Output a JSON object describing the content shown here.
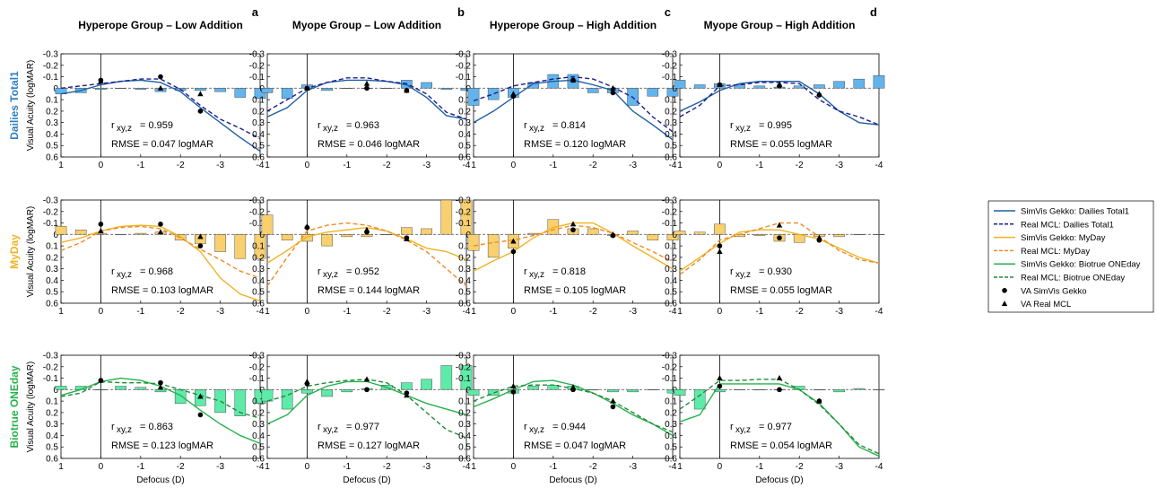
{
  "figure": {
    "x_label": "Defocus (D)",
    "y_label": "Visual Acuity (logMAR)",
    "columns": [
      {
        "title": "Hyperope Group – Low Addition",
        "letter": "a"
      },
      {
        "title": "Myope Group – Low Addition",
        "letter": "b"
      },
      {
        "title": "Hyperope Group – High Addition",
        "letter": "c"
      },
      {
        "title": "Myope Group – High Addition",
        "letter": "d"
      }
    ],
    "rows": [
      {
        "label": "Dailies Total1",
        "color": "#2e7fc2",
        "bar_color": "#64b4ec"
      },
      {
        "label": "MyDay",
        "color": "#f0b323",
        "bar_color": "#f8d070"
      },
      {
        "label": "Biotrue ONEday",
        "color": "#26b24b",
        "bar_color": "#5eeaa8"
      }
    ],
    "sim_dark_color": "#1f5fa3",
    "real_dark_colors": [
      "#1b1e8c",
      "#f08a24",
      "#1e8a3a"
    ]
  },
  "legend": {
    "items": [
      {
        "label": "SimVis Gekko: Dailies Total1",
        "style": "solid",
        "color": "#1f5fa3"
      },
      {
        "label": "Real MCL: Dailies Total1",
        "style": "dashed",
        "color": "#1b1e8c"
      },
      {
        "label": "SimVis Gekko: MyDay",
        "style": "solid",
        "color": "#f0b323"
      },
      {
        "label": "Real MCL: MyDay",
        "style": "dashed",
        "color": "#f08a24"
      },
      {
        "label": "SimVis Gekko: Biotrue ONEday",
        "style": "solid",
        "color": "#26b24b"
      },
      {
        "label": "Real MCL: Biotrue ONEday",
        "style": "dashed",
        "color": "#1e8a3a"
      },
      {
        "label": "VA SimVis Gekko",
        "style": "circle",
        "color": "#000000"
      },
      {
        "label": "VA Real MCL",
        "style": "triangle",
        "color": "#000000"
      }
    ]
  },
  "chart_data": {
    "type": "line",
    "x_ticks": [
      1,
      0,
      -1,
      -2,
      -3,
      -4
    ],
    "y_ticks": [
      -0.3,
      -0.2,
      -0.1,
      0,
      0.1,
      0.2,
      0.3,
      0.4,
      0.5,
      0.6
    ],
    "xlim": [
      1,
      -4
    ],
    "ylim": [
      -0.3,
      0.6
    ],
    "y_inverted": true,
    "x": [
      1,
      0.5,
      0,
      -0.5,
      -1,
      -1.5,
      -2,
      -2.5,
      -3,
      -3.5,
      -4
    ],
    "panels": [
      {
        "row": 0,
        "col": 0,
        "r_label": "r",
        "r_sub": "xy,z",
        "r_value": "= 0.959",
        "rmse": "RMSE = 0.047 logMAR",
        "sim": [
          0.05,
          0.02,
          -0.03,
          -0.06,
          -0.07,
          -0.05,
          0.03,
          0.17,
          0.3,
          0.43,
          0.55
        ],
        "real": [
          0.0,
          -0.02,
          -0.04,
          -0.06,
          -0.08,
          -0.08,
          0.01,
          0.15,
          0.27,
          0.35,
          0.44
        ],
        "bars": [
          0.05,
          0.04,
          0.01,
          0.0,
          0.01,
          0.03,
          0.02,
          0.02,
          0.03,
          0.08,
          0.09
        ],
        "va_sim": [
          [
            0.0,
            -0.07
          ],
          [
            -1.5,
            -0.1
          ],
          [
            -2.5,
            0.2
          ]
        ],
        "va_real": [
          [
            0.0,
            -0.06
          ],
          [
            -1.5,
            0.0
          ],
          [
            -2.5,
            0.05
          ]
        ]
      },
      {
        "row": 0,
        "col": 1,
        "r_label": "r",
        "r_sub": "xy,z",
        "r_value": "= 0.963",
        "rmse": "RMSE = 0.046 logMAR",
        "sim": [
          0.25,
          0.17,
          0.02,
          -0.05,
          -0.07,
          -0.07,
          -0.06,
          -0.03,
          0.08,
          0.24,
          0.27
        ],
        "real": [
          0.2,
          0.1,
          0.0,
          -0.05,
          -0.09,
          -0.09,
          -0.06,
          -0.04,
          0.05,
          0.21,
          0.27
        ],
        "bars": [
          0.04,
          0.09,
          -0.03,
          0.02,
          0.0,
          0.0,
          0.0,
          -0.07,
          -0.05,
          0.01,
          0.02
        ],
        "va_sim": [
          [
            0.0,
            0.0
          ],
          [
            -1.5,
            0.0
          ],
          [
            -2.5,
            0.02
          ]
        ],
        "va_real": [
          [
            0.0,
            0.0
          ],
          [
            -1.5,
            -0.04
          ],
          [
            -2.5,
            0.02
          ]
        ]
      },
      {
        "row": 0,
        "col": 2,
        "r_label": "r",
        "r_sub": "xy,z",
        "r_value": "= 0.814",
        "rmse": "RMSE = 0.120 logMAR",
        "sim": [
          0.3,
          0.2,
          0.08,
          -0.04,
          -0.06,
          -0.07,
          -0.03,
          0.02,
          0.2,
          0.32,
          0.45
        ],
        "real": [
          0.11,
          0.05,
          -0.02,
          -0.05,
          -0.08,
          -0.1,
          -0.08,
          -0.01,
          0.08,
          0.25,
          0.38
        ],
        "bars": [
          0.15,
          0.1,
          0.08,
          -0.05,
          -0.12,
          -0.12,
          0.04,
          0.04,
          0.15,
          0.07,
          0.07
        ],
        "va_sim": [
          [
            0.0,
            0.07
          ],
          [
            -1.5,
            -0.07
          ],
          [
            -2.5,
            0.04
          ]
        ],
        "va_real": [
          [
            0.0,
            0.05
          ],
          [
            -1.5,
            -0.07
          ],
          [
            -2.5,
            0.0
          ]
        ]
      },
      {
        "row": 0,
        "col": 3,
        "r_label": "r",
        "r_sub": "xy,z",
        "r_value": "= 0.995",
        "rmse": "RMSE = 0.055 logMAR",
        "sim": [
          0.2,
          0.12,
          0.02,
          -0.04,
          -0.06,
          -0.06,
          -0.06,
          0.05,
          0.2,
          0.3,
          0.32
        ],
        "real": [
          0.25,
          0.15,
          -0.02,
          -0.03,
          -0.05,
          -0.05,
          -0.04,
          0.1,
          0.2,
          0.25,
          0.32
        ],
        "bars": [
          -0.07,
          -0.03,
          -0.04,
          -0.03,
          -0.02,
          -0.01,
          -0.02,
          -0.03,
          -0.06,
          -0.08,
          -0.11
        ],
        "va_sim": [
          [
            0.0,
            -0.03
          ],
          [
            -1.5,
            -0.02
          ],
          [
            -2.5,
            0.06
          ]
        ],
        "va_real": [
          [
            0.0,
            -0.03
          ],
          [
            -1.5,
            -0.03
          ],
          [
            -2.5,
            0.05
          ]
        ]
      },
      {
        "row": 1,
        "col": 0,
        "r_label": "r",
        "r_sub": "xy,z",
        "r_value": "= 0.968",
        "rmse": "RMSE = 0.103 logMAR",
        "sim": [
          0.07,
          0.03,
          -0.03,
          -0.07,
          -0.08,
          -0.07,
          0.02,
          0.15,
          0.38,
          0.52,
          0.58
        ],
        "real": [
          0.14,
          0.07,
          -0.03,
          -0.06,
          -0.07,
          -0.05,
          0.03,
          0.13,
          0.22,
          0.32,
          0.38
        ],
        "bars": [
          -0.07,
          -0.04,
          -0.01,
          0.0,
          -0.01,
          -0.02,
          0.05,
          0.08,
          0.15,
          0.21,
          0.21
        ],
        "va_sim": [
          [
            0.0,
            -0.09
          ],
          [
            -1.5,
            -0.09
          ],
          [
            -2.5,
            0.1
          ]
        ],
        "va_real": [
          [
            0.0,
            -0.03
          ],
          [
            -1.5,
            -0.02
          ],
          [
            -2.5,
            0.02
          ]
        ]
      },
      {
        "row": 1,
        "col": 1,
        "r_label": "r",
        "r_sub": "xy,z",
        "r_value": "= 0.952",
        "rmse": "RMSE = 0.144 logMAR",
        "sim": [
          0.25,
          0.14,
          0.02,
          -0.02,
          -0.04,
          -0.06,
          -0.03,
          0.04,
          0.12,
          0.15,
          0.22
        ],
        "real": [
          0.45,
          0.2,
          -0.03,
          -0.08,
          -0.1,
          -0.08,
          -0.03,
          0.05,
          0.15,
          0.3,
          0.45
        ],
        "bars": [
          -0.17,
          0.05,
          0.06,
          0.1,
          0.02,
          0.02,
          0.0,
          -0.06,
          -0.05,
          -0.3,
          -0.3
        ],
        "va_sim": [
          [
            0.0,
            -0.06
          ],
          [
            -1.5,
            -0.02
          ],
          [
            -2.5,
            0.03
          ]
        ],
        "va_real": [
          [
            0.0,
            -0.07
          ],
          [
            -1.5,
            -0.04
          ],
          [
            -2.5,
            0.04
          ]
        ]
      },
      {
        "row": 1,
        "col": 2,
        "r_label": "r",
        "r_sub": "xy,z",
        "r_value": "= 0.818",
        "rmse": "RMSE = 0.105 logMAR",
        "sim": [
          0.32,
          0.23,
          0.15,
          0.03,
          -0.06,
          -0.1,
          -0.1,
          -0.01,
          0.1,
          0.2,
          0.3
        ],
        "real": [
          0.1,
          0.07,
          0.05,
          0.01,
          -0.04,
          -0.08,
          -0.06,
          -0.01,
          0.07,
          0.15,
          0.24
        ],
        "bars": [
          0.14,
          0.2,
          0.12,
          -0.01,
          -0.13,
          -0.05,
          -0.05,
          0.01,
          -0.03,
          0.05,
          0.05
        ],
        "va_sim": [
          [
            0.0,
            0.15
          ],
          [
            -1.5,
            -0.04
          ],
          [
            -2.5,
            0.01
          ]
        ],
        "va_real": [
          [
            0.0,
            0.06
          ],
          [
            -1.5,
            -0.09
          ],
          [
            -2.5,
            0.0
          ]
        ]
      },
      {
        "row": 1,
        "col": 3,
        "r_label": "r",
        "r_sub": "xy,z",
        "r_value": "= 0.930",
        "rmse": "RMSE = 0.055 logMAR",
        "sim": [
          0.32,
          0.2,
          0.08,
          -0.02,
          -0.04,
          -0.04,
          0.0,
          0.04,
          0.12,
          0.2,
          0.25
        ],
        "real": [
          0.35,
          0.22,
          0.05,
          0.0,
          -0.05,
          -0.1,
          -0.1,
          0.02,
          0.14,
          0.22,
          0.25
        ],
        "bars": [
          -0.03,
          -0.02,
          -0.09,
          0.02,
          0.01,
          0.06,
          0.07,
          0.02,
          0.02,
          0.0,
          0.0
        ],
        "va_sim": [
          [
            0.0,
            0.1
          ],
          [
            -1.5,
            0.03
          ],
          [
            -2.5,
            0.05
          ]
        ],
        "va_real": [
          [
            0.0,
            0.15
          ],
          [
            -1.5,
            -0.08
          ],
          [
            -2.5,
            0.03
          ]
        ]
      },
      {
        "row": 2,
        "col": 0,
        "r_label": "r",
        "r_sub": "xy,z",
        "r_value": "= 0.863",
        "rmse": "RMSE = 0.123 logMAR",
        "sim": [
          0.05,
          0.0,
          -0.07,
          -0.1,
          -0.08,
          -0.03,
          0.05,
          0.18,
          0.3,
          0.4,
          0.47
        ],
        "real": [
          0.06,
          0.03,
          -0.07,
          -0.06,
          -0.06,
          -0.05,
          0.0,
          0.05,
          0.1,
          0.2,
          0.25
        ],
        "bars": [
          -0.03,
          -0.03,
          0.0,
          -0.03,
          -0.02,
          0.02,
          0.12,
          0.14,
          0.2,
          0.23,
          0.12
        ],
        "va_sim": [
          [
            0.0,
            -0.08
          ],
          [
            -1.5,
            -0.06
          ],
          [
            -2.5,
            0.22
          ]
        ],
        "va_real": [
          [
            0.0,
            -0.08
          ],
          [
            -1.5,
            -0.02
          ],
          [
            -2.5,
            0.06
          ]
        ]
      },
      {
        "row": 2,
        "col": 1,
        "r_label": "r",
        "r_sub": "xy,z",
        "r_value": "= 0.977",
        "rmse": "RMSE = 0.127 logMAR",
        "sim": [
          0.3,
          0.22,
          0.05,
          -0.03,
          -0.07,
          -0.07,
          -0.02,
          0.05,
          0.12,
          0.17,
          0.22
        ],
        "real": [
          0.1,
          0.05,
          -0.03,
          -0.06,
          -0.08,
          -0.09,
          -0.06,
          0.05,
          0.2,
          0.35,
          0.42
        ],
        "bars": [
          0.1,
          0.17,
          0.03,
          0.06,
          0.02,
          -0.01,
          -0.04,
          -0.06,
          -0.09,
          -0.21,
          -0.21
        ],
        "va_sim": [
          [
            0.0,
            -0.05
          ],
          [
            -1.5,
            0.0
          ],
          [
            -2.5,
            0.03
          ]
        ],
        "va_real": [
          [
            0.0,
            -0.07
          ],
          [
            -1.5,
            -0.09
          ],
          [
            -2.5,
            0.05
          ]
        ]
      },
      {
        "row": 2,
        "col": 2,
        "r_label": "r",
        "r_sub": "xy,z",
        "r_value": "= 0.944",
        "rmse": "RMSE = 0.047 logMAR",
        "sim": [
          0.15,
          0.08,
          0.0,
          -0.07,
          -0.08,
          -0.04,
          0.03,
          0.12,
          0.22,
          0.3,
          0.4
        ],
        "real": [
          0.1,
          0.03,
          -0.03,
          -0.04,
          -0.04,
          -0.01,
          0.03,
          0.1,
          0.2,
          0.3,
          0.37
        ],
        "bars": [
          0.05,
          0.05,
          0.03,
          -0.03,
          -0.04,
          -0.03,
          0.0,
          0.02,
          0.02,
          0.0,
          0.03
        ],
        "va_sim": [
          [
            0.0,
            0.02
          ],
          [
            -1.5,
            0.0
          ],
          [
            -2.5,
            0.15
          ]
        ],
        "va_real": [
          [
            0.0,
            -0.03
          ],
          [
            -1.5,
            -0.02
          ],
          [
            -2.5,
            0.1
          ]
        ]
      },
      {
        "row": 2,
        "col": 3,
        "r_label": "r",
        "r_sub": "xy,z",
        "r_value": "= 0.977",
        "rmse": "RMSE = 0.054 logMAR",
        "sim": [
          0.28,
          0.22,
          -0.05,
          -0.05,
          -0.05,
          -0.05,
          0.0,
          0.12,
          0.3,
          0.5,
          0.58
        ],
        "real": [
          0.17,
          0.05,
          -0.08,
          -0.08,
          -0.09,
          -0.09,
          0.0,
          0.13,
          0.3,
          0.48,
          0.56
        ],
        "bars": [
          0.05,
          0.17,
          0.02,
          0.0,
          0.0,
          0.0,
          -0.03,
          0.0,
          0.02,
          -0.01,
          0.0
        ],
        "va_sim": [
          [
            0.0,
            -0.03
          ],
          [
            -1.5,
            0.0
          ],
          [
            -2.5,
            0.1
          ]
        ],
        "va_real": [
          [
            0.0,
            -0.1
          ],
          [
            -1.5,
            -0.1
          ],
          [
            -2.5,
            0.1
          ]
        ]
      }
    ]
  }
}
